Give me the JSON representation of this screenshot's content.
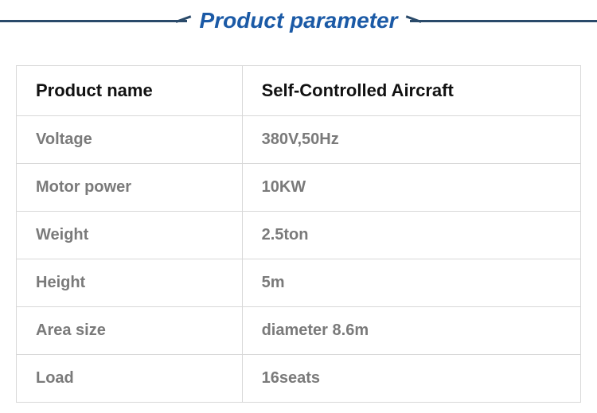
{
  "header": {
    "title": "Product parameter",
    "title_color": "#1b5aa6",
    "line_color": "#2a4a6a",
    "title_fontsize": 28
  },
  "table": {
    "border_color": "#d8d8d8",
    "header_text_color": "#111111",
    "body_text_color": "#7a7a7a",
    "label_col_width_pct": 40,
    "value_col_width_pct": 60,
    "cell_fontsize": 20,
    "header_fontsize": 22,
    "rows": [
      {
        "label": "Product name",
        "value": "Self-Controlled Aircraft",
        "is_header": true
      },
      {
        "label": "Voltage",
        "value": "380V,50Hz"
      },
      {
        "label": "Motor power",
        "value": "10KW"
      },
      {
        "label": "Weight",
        "value": "2.5ton"
      },
      {
        "label": "Height",
        "value": "5m"
      },
      {
        "label": "Area size",
        "value": "diameter 8.6m"
      },
      {
        "label": "Load",
        "value": "16seats"
      }
    ]
  }
}
